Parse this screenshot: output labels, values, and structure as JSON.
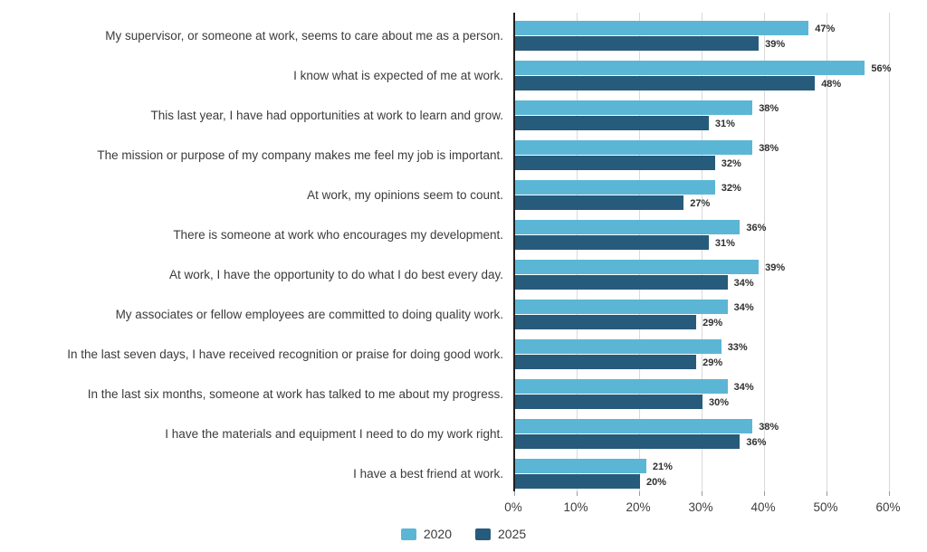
{
  "chart_data": {
    "type": "bar",
    "orientation": "horizontal",
    "title": "",
    "xlabel": "",
    "ylabel": "",
    "value_suffix": "%",
    "categories": [
      "My supervisor, or someone at work, seems to care about me as a person.",
      "I know what is expected of me at work.",
      "This last year, I have had opportunities at work to learn and grow.",
      "The mission or purpose of my company makes me feel my job is important.",
      "At work, my opinions seem to count.",
      "There is someone at work who encourages my development.",
      "At work, I have the opportunity to do what I do best every day.",
      "My associates or fellow employees are committed to doing quality work.",
      "In the last seven days, I have received recognition or praise for doing good work.",
      "In the last six months, someone at work has talked to me about my progress.",
      "I have the materials and equipment I need to do my work right.",
      "I have a best friend at work."
    ],
    "series": [
      {
        "name": "2020",
        "color": "#5BB6D5",
        "values": [
          47,
          56,
          38,
          38,
          32,
          36,
          39,
          34,
          33,
          34,
          38,
          21
        ]
      },
      {
        "name": "2025",
        "color": "#275B7C",
        "values": [
          39,
          48,
          31,
          32,
          27,
          31,
          34,
          29,
          29,
          30,
          36,
          20
        ]
      }
    ],
    "x_axis": {
      "min": 0,
      "max": 60,
      "tick_step": 10,
      "tick_labels": [
        "0%",
        "10%",
        "20%",
        "30%",
        "40%",
        "50%",
        "60%"
      ]
    },
    "grid": true,
    "legend_position": "bottom-center",
    "colors": {
      "axis_line": "#1f1f1f",
      "grid_line": "#d9d9d9",
      "text": "#3b3b3b",
      "value_text": "#2f2f2f"
    }
  }
}
